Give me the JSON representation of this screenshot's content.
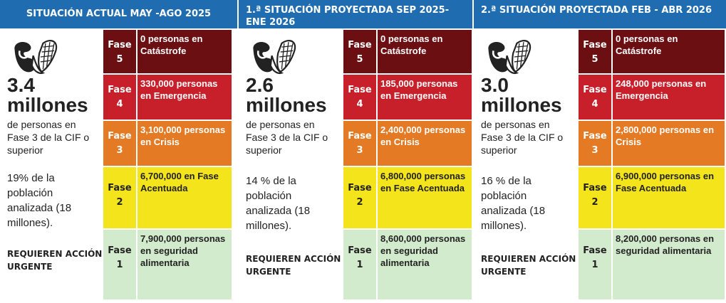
{
  "colors": {
    "header": "#1f6db0",
    "fase5": "#6b0f12",
    "fase4": "#c8202a",
    "fase3": "#e47a24",
    "fase2": "#f4e41c",
    "fase1": "#d3ebcd"
  },
  "panels": [
    {
      "title": "SITUACIÓN ACTUAL MAY -AGO 2025",
      "big_number": "3.4",
      "big_unit": "millones",
      "subtitle": "de personas en Fase 3 de la CIF o superior",
      "percent_text": "19% de la población analizada (18 millones).",
      "urgent": "REQUIEREN ACCIÓN URGENTE",
      "phases": [
        {
          "label": "Fase",
          "num": "5",
          "text": "0 personas en Catástrofe"
        },
        {
          "label": "Fase",
          "num": "4",
          "text": "330,000 personas en Emergencia"
        },
        {
          "label": "Fase",
          "num": "3",
          "text": "3,100,000 personas en Crisis"
        },
        {
          "label": "Fase",
          "num": "2",
          "text": "6,700,000 en Fase Acentuada"
        },
        {
          "label": "Fase",
          "num": "1",
          "text": "7,900,000 personas en seguridad alimentaria"
        }
      ]
    },
    {
      "title": "1.ª SITUACIÓN PROYECTADA SEP 2025-ENE 2026",
      "big_number": "2.6",
      "big_unit": "millones",
      "subtitle": "de personas en Fase 3 de la CIF o superior",
      "percent_text": "14 % de la población analizada (18 millones).",
      "urgent": "REQUIEREN ACCIÓN URGENTE",
      "phases": [
        {
          "label": "Fase",
          "num": "5",
          "text": "0 personas en Catástrofe"
        },
        {
          "label": "Fase",
          "num": "4",
          "text": "185,000 personas en Emergencia"
        },
        {
          "label": "Fase",
          "num": "3",
          "text": "2,400,000 personas en Crisis"
        },
        {
          "label": "Fase",
          "num": "2",
          "text": "6,800,000 personas en Fase Acentuada"
        },
        {
          "label": "Fase",
          "num": "1",
          "text": "8,600,000 personas en seguridad alimentaria"
        }
      ]
    },
    {
      "title": "2.ª SITUACIÓN PROYECTADA FEB - ABR 2026",
      "big_number": "3.0",
      "big_unit": "millones",
      "subtitle": "de personas en Fase 3 de la CIF o superior",
      "percent_text": "16 % de la población analizada (18 millones).",
      "urgent": "REQUIEREN ACCIÓN URGENTE",
      "phases": [
        {
          "label": "Fase",
          "num": "5",
          "text": "0 personas en Catástrofe"
        },
        {
          "label": "Fase",
          "num": "4",
          "text": "248,000 personas en Emergencia"
        },
        {
          "label": "Fase",
          "num": "3",
          "text": "2,800,000 personas en Crisis"
        },
        {
          "label": "Fase",
          "num": "2",
          "text": "6,900,000 personas en Fase Acentuada"
        },
        {
          "label": "Fase",
          "num": "1",
          "text": "8,200,000 personas en seguridad alimentaria"
        }
      ]
    }
  ]
}
